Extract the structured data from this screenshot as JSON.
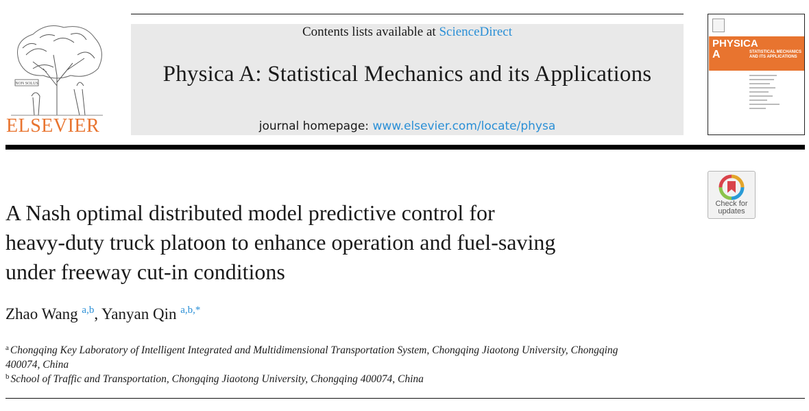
{
  "header": {
    "publisher_logo_text": "ELSEVIER",
    "contents_prefix": "Contents lists available at ",
    "contents_link": "ScienceDirect",
    "journal_name": "Physica A: Statistical Mechanics and its Applications",
    "homepage_prefix": "journal homepage: ",
    "homepage_link": "www.elsevier.com/locate/physa",
    "cover": {
      "word": "PHYSICA",
      "letter": "A",
      "subtitle": "STATISTICAL MECHANICS AND ITS APPLICATIONS"
    }
  },
  "badge": {
    "line1": "Check for",
    "line2": "updates"
  },
  "article": {
    "title_lines": [
      "A Nash optimal distributed model predictive control for",
      "heavy-duty truck platoon to enhance operation and fuel-saving",
      "under freeway cut-in conditions"
    ],
    "authors": [
      {
        "name": "Zhao Wang",
        "sup": "a,b"
      },
      {
        "name": "Yanyan Qin",
        "sup": "a,b,*"
      }
    ],
    "author_separator": ", ",
    "affiliations": [
      {
        "mark": "a",
        "text": "Chongqing Key Laboratory of Intelligent Integrated and Multidimensional Transportation System, Chongqing Jiaotong University, Chongqing",
        "text_cont": "400074, China"
      },
      {
        "mark": "b",
        "text": "School of Traffic and Transportation, Chongqing Jiaotong University, Chongqing 400074, China"
      }
    ]
  },
  "colors": {
    "link": "#2a8fd6",
    "elsevier_orange": "#e8742f",
    "header_box": "#e9e9e9"
  }
}
